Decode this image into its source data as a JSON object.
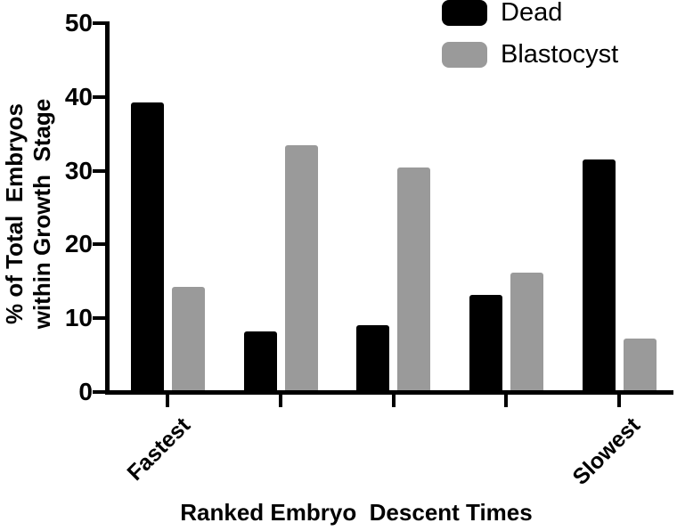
{
  "chart_data": {
    "type": "bar",
    "title": "",
    "xlabel": "Ranked Embryo  Descent Times",
    "ylabel": "% of Total  Embryos within Growth  Stage",
    "ylabel_line1": "% of Total  Embryos",
    "ylabel_line2": "within Growth  Stage",
    "categories": [
      "Fastest",
      "",
      "",
      "",
      "Slowest"
    ],
    "series": [
      {
        "name": "Dead",
        "color": "#000000",
        "values": [
          39.3,
          8.2,
          9.1,
          13.2,
          31.5
        ]
      },
      {
        "name": "Blastocyst",
        "color": "#9a9a9a",
        "values": [
          14.3,
          33.4,
          30.4,
          16.2,
          7.2
        ]
      }
    ],
    "ylim": [
      0,
      50
    ],
    "yticks": [
      0,
      10,
      20,
      30,
      40,
      50
    ],
    "grid": false,
    "legend_position": "top-right"
  },
  "legend": {
    "items": [
      {
        "label": "Dead",
        "color": "#000000"
      },
      {
        "label": "Blastocyst",
        "color": "#9a9a9a"
      }
    ]
  }
}
